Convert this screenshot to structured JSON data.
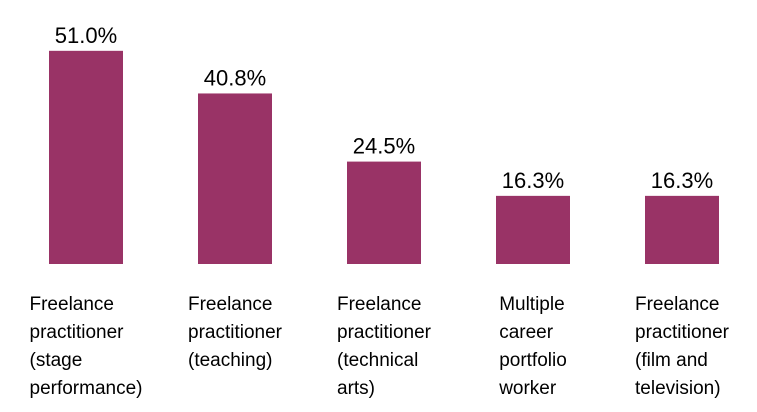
{
  "chart_data": {
    "type": "bar",
    "categories": [
      [
        "Freelance",
        "practitioner",
        "(stage",
        "performance)"
      ],
      [
        "Freelance",
        "practitioner",
        "(teaching)"
      ],
      [
        "Freelance",
        "practitioner",
        "(technical",
        "arts)"
      ],
      [
        "Multiple",
        "career",
        "portfolio",
        "worker"
      ],
      [
        "Freelance",
        "practitioner",
        "(film and",
        "television)"
      ]
    ],
    "values": [
      51.0,
      40.8,
      24.5,
      16.3,
      16.3
    ],
    "value_labels": [
      "51.0%",
      "40.8%",
      "24.5%",
      "16.3%",
      "16.3%"
    ],
    "color": "#993366"
  }
}
